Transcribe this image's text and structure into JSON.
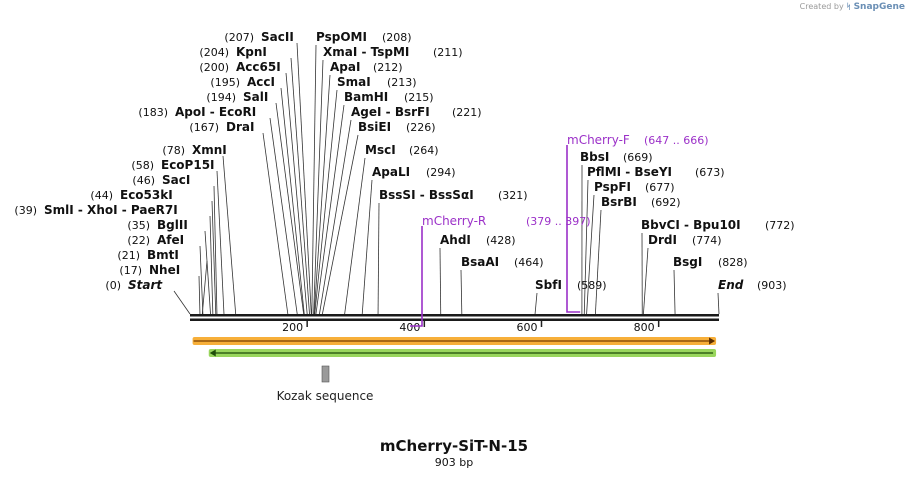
{
  "brand": {
    "created_by": "Created by",
    "mark": "ᛋ",
    "name": "SnapGene"
  },
  "map": {
    "title": "mCherry-SiT-N-15",
    "length_label": "903 bp",
    "length_bp": 903,
    "ticks": [
      200,
      400,
      600,
      800
    ]
  },
  "left_sites": [
    {
      "name": "Start",
      "pos_label": "(0)",
      "site": 0,
      "italic": true
    },
    {
      "name": "NheI",
      "pos_label": "(17)",
      "site": 17
    },
    {
      "name": "BmtI",
      "pos_label": "(21)",
      "site": 21
    },
    {
      "name": "AfeI",
      "pos_label": "(22)",
      "site": 22
    },
    {
      "name": "BglII",
      "pos_label": "(35)",
      "site": 35
    },
    {
      "name": "SmlI - XhoI - PaeR7I",
      "pos_label": "(39)",
      "site": 39
    },
    {
      "name": "Eco53kI",
      "pos_label": "(44)",
      "site": 44
    },
    {
      "name": "SacI",
      "pos_label": "(46)",
      "site": 46
    },
    {
      "name": "EcoP15I",
      "pos_label": "(58)",
      "site": 58
    },
    {
      "name": "XmnI",
      "pos_label": "(78)",
      "site": 78
    },
    {
      "name": "DraI",
      "pos_label": "(167)",
      "site": 167
    },
    {
      "name": "ApoI - EcoRI",
      "pos_label": "(183)",
      "site": 183
    },
    {
      "name": "SalI",
      "pos_label": "(194)",
      "site": 194
    },
    {
      "name": "AccI",
      "pos_label": "(195)",
      "site": 195
    },
    {
      "name": "Acc65I",
      "pos_label": "(200)",
      "site": 200
    },
    {
      "name": "KpnI",
      "pos_label": "(204)",
      "site": 204
    },
    {
      "name": "SacII",
      "pos_label": "(207)",
      "site": 207
    }
  ],
  "right_sites": [
    {
      "name": "PspOMI",
      "pos_label": "(208)",
      "site": 208
    },
    {
      "name": "XmaI - TspMI",
      "pos_label": "(211)",
      "site": 211
    },
    {
      "name": "ApaI",
      "pos_label": "(212)",
      "site": 212
    },
    {
      "name": "SmaI",
      "pos_label": "(213)",
      "site": 213
    },
    {
      "name": "BamHI",
      "pos_label": "(215)",
      "site": 215
    },
    {
      "name": "AgeI - BsrFI",
      "pos_label": "(221)",
      "site": 221
    },
    {
      "name": "BsiEI",
      "pos_label": "(226)",
      "site": 226
    },
    {
      "name": "MscI",
      "pos_label": "(264)",
      "site": 264
    },
    {
      "name": "ApaLI",
      "pos_label": "(294)",
      "site": 294
    },
    {
      "name": "BssSI - BssSαI",
      "pos_label": "(321)",
      "site": 321
    },
    {
      "name": "AhdI",
      "pos_label": "(428)",
      "site": 428
    },
    {
      "name": "BsaAI",
      "pos_label": "(464)",
      "site": 464
    },
    {
      "name": "SbfI",
      "pos_label": "(589)",
      "site": 589
    },
    {
      "name": "BbsI",
      "pos_label": "(669)",
      "site": 669
    },
    {
      "name": "PflMI - BseYI",
      "pos_label": "(673)",
      "site": 673
    },
    {
      "name": "PspFI",
      "pos_label": "(677)",
      "site": 677
    },
    {
      "name": "BsrBI",
      "pos_label": "(692)",
      "site": 692
    },
    {
      "name": "BbvCI - Bpu10I",
      "pos_label": "(772)",
      "site": 772
    },
    {
      "name": "DrdI",
      "pos_label": "(774)",
      "site": 774
    },
    {
      "name": "BsgI",
      "pos_label": "(828)",
      "site": 828
    },
    {
      "name": "End",
      "pos_label": "(903)",
      "site": 903,
      "italic": true
    }
  ],
  "primers": [
    {
      "name": "mCherry-F",
      "range_label": "(647 .. 666)",
      "start": 647,
      "end": 666,
      "strand": "forward"
    },
    {
      "name": "mCherry-R",
      "range_label": "(379 .. 397)",
      "start": 379,
      "end": 397,
      "strand": "reverse"
    }
  ],
  "features": [
    {
      "label": "",
      "start": 1,
      "end": 898,
      "strand": "forward",
      "color": "#f6a623"
    },
    {
      "label": "",
      "start": 32,
      "end": 898,
      "strand": "reverse",
      "color": "#8ed14b"
    },
    {
      "label": "Kozak sequence",
      "start": 230,
      "end": 240,
      "strand": "none",
      "color": "#9a9a9a"
    }
  ],
  "colors": {
    "primer": "#9b30c8",
    "text": "#111111",
    "line": "#222222"
  }
}
